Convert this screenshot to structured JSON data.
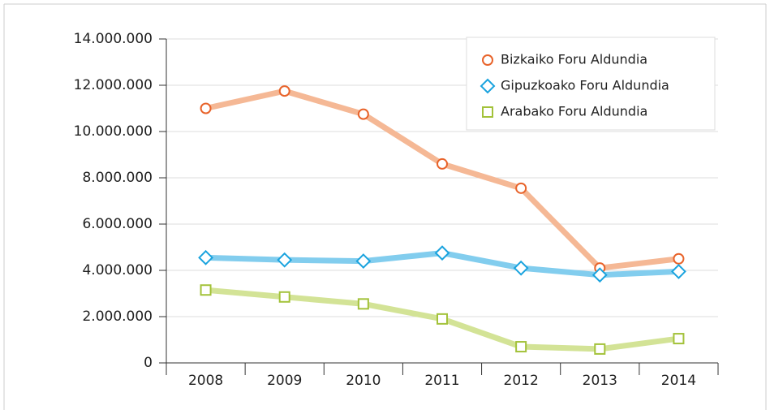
{
  "chart_data": {
    "type": "line",
    "categories": [
      "2008",
      "2009",
      "2010",
      "2011",
      "2012",
      "2013",
      "2014"
    ],
    "series": [
      {
        "name": "Bizkaiko Foru Aldundia",
        "color": "#e8632a",
        "line_color": "#f5b895",
        "marker": "circle",
        "values": [
          11000000,
          11750000,
          10750000,
          8600000,
          7550000,
          4100000,
          4500000
        ]
      },
      {
        "name": "Gipuzkoako Foru Aldundia",
        "color": "#1aa3de",
        "line_color": "#82cdee",
        "marker": "diamond",
        "values": [
          4550000,
          4450000,
          4400000,
          4750000,
          4100000,
          3800000,
          3950000
        ]
      },
      {
        "name": "Arabako Foru Aldundia",
        "color": "#a3c23a",
        "line_color": "#d3e396",
        "marker": "square",
        "values": [
          3150000,
          2850000,
          2550000,
          1900000,
          700000,
          600000,
          1050000
        ]
      }
    ],
    "ylim": [
      0,
      14000000
    ],
    "yticks": [
      0,
      {
        "value": 2000000,
        "label": "2.000.000"
      },
      {
        "value": 4000000,
        "label": "4.000.000"
      },
      {
        "value": 6000000,
        "label": "6.000.000"
      },
      {
        "value": 8000000,
        "label": "8.000.000"
      },
      {
        "value": 10000000,
        "label": "10.000.000"
      },
      {
        "value": 12000000,
        "label": "12.000.000"
      },
      {
        "value": 14000000,
        "label": "14.000.000"
      }
    ],
    "grid": true,
    "legend": "top-right"
  }
}
